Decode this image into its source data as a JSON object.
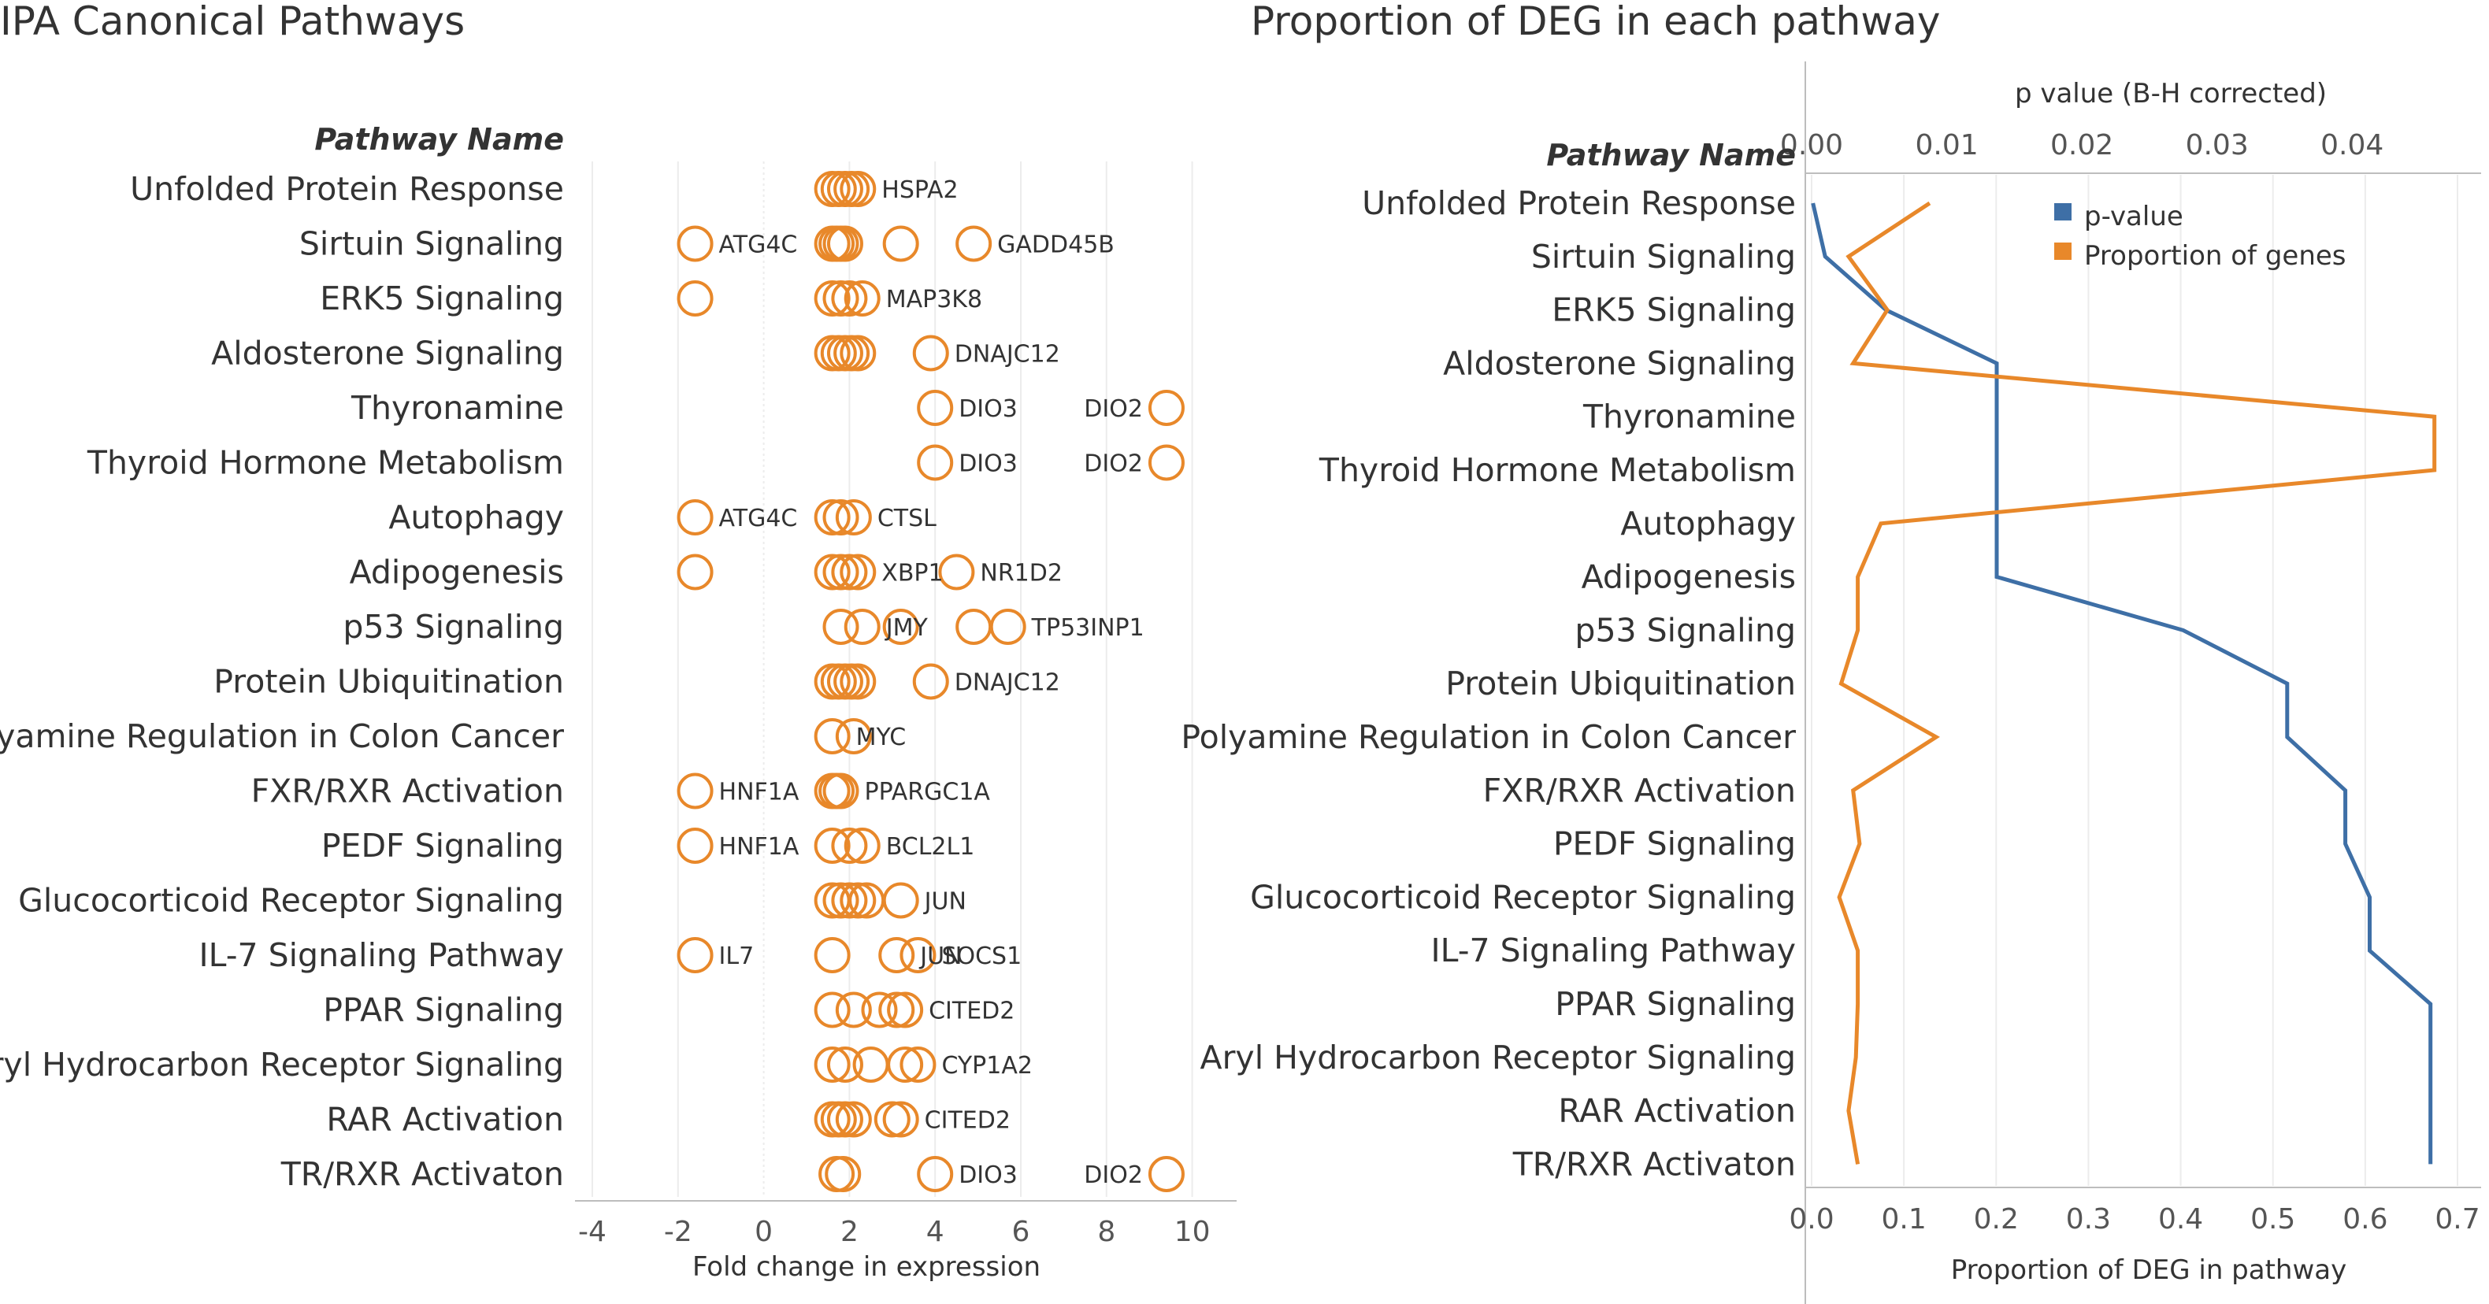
{
  "colors": {
    "orange": "#E8882A",
    "blue": "#3E6FA6"
  },
  "chart_data": [
    {
      "type": "scatter",
      "title": "IPA Canonical Pathways",
      "category_header": "Pathway Name",
      "xlabel": "Fold change in expression",
      "xlim": [
        -4,
        11
      ],
      "xticks": [
        -4,
        -2,
        0,
        2,
        4,
        6,
        8,
        10
      ],
      "categories": [
        "Unfolded Protein Response",
        "Sirtuin Signaling",
        "ERK5 Signaling",
        "Aldosterone Signaling",
        "Thyronamine",
        "Thyroid Hormone Metabolism",
        "Autophagy",
        "Adipogenesis",
        "p53 Signaling",
        "Protein Ubiquitination",
        "Polyamine Regulation in Colon Cancer",
        "FXR/RXR Activation",
        "PEDF Signaling",
        "Glucocorticoid Receptor Signaling",
        "IL-7 Signaling Pathway",
        "PPAR Signaling",
        "Aryl Hydrocarbon Receptor Signaling",
        "RAR Activation",
        "TR/RXR Activaton"
      ],
      "points": [
        [
          1.6,
          1.75,
          1.9,
          2.05,
          2.2
        ],
        [
          -1.6,
          1.6,
          1.7,
          1.8,
          1.9,
          3.2,
          4.9
        ],
        [
          -1.6,
          1.6,
          1.8,
          2.0,
          2.3
        ],
        [
          1.6,
          1.75,
          1.9,
          2.05,
          2.2,
          3.9
        ],
        [
          4.0,
          9.4
        ],
        [
          4.0,
          9.4
        ],
        [
          -1.6,
          1.6,
          1.8,
          2.1
        ],
        [
          -1.6,
          1.6,
          1.8,
          2.0,
          2.2,
          4.5
        ],
        [
          1.8,
          2.3,
          3.2,
          4.9,
          5.7
        ],
        [
          1.6,
          1.75,
          1.9,
          2.05,
          2.2,
          3.9
        ],
        [
          1.6,
          2.1
        ],
        [
          -1.6,
          1.6,
          1.7,
          1.8
        ],
        [
          -1.6,
          1.6,
          2.0,
          2.3
        ],
        [
          1.6,
          1.8,
          2.0,
          2.2,
          2.4,
          3.2
        ],
        [
          -1.6,
          1.6,
          3.1,
          3.6
        ],
        [
          1.6,
          2.1,
          2.7,
          3.1,
          3.3
        ],
        [
          1.6,
          1.9,
          2.5,
          3.3,
          3.6
        ],
        [
          1.6,
          1.75,
          1.9,
          2.1,
          3.0,
          3.2
        ],
        [
          1.7,
          1.85,
          4.0,
          9.4
        ]
      ],
      "gene_labels": [
        [
          {
            "text": "HSPA2",
            "x": 2.2
          }
        ],
        [
          {
            "text": "ATG4C",
            "x": -1.6
          },
          {
            "text": "GADD45B",
            "x": 4.9
          }
        ],
        [
          {
            "text": "MAP3K8",
            "x": 2.3
          }
        ],
        [
          {
            "text": "DNAJC12",
            "x": 3.9
          }
        ],
        [
          {
            "text": "DIO3",
            "x": 4.0
          },
          {
            "text": "DIO2",
            "x": 9.4,
            "side": "left"
          }
        ],
        [
          {
            "text": "DIO3",
            "x": 4.0
          },
          {
            "text": "DIO2",
            "x": 9.4,
            "side": "left"
          }
        ],
        [
          {
            "text": "ATG4C",
            "x": -1.6
          },
          {
            "text": "CTSL",
            "x": 2.1
          }
        ],
        [
          {
            "text": "XBP1",
            "x": 2.2
          },
          {
            "text": "NR1D2",
            "x": 4.5
          }
        ],
        [
          {
            "text": "JMY",
            "x": 2.3
          },
          {
            "text": "TP53INP1",
            "x": 5.7
          }
        ],
        [
          {
            "text": "DNAJC12",
            "x": 3.9
          }
        ],
        [
          {
            "text": "MYC",
            "x": 1.6
          }
        ],
        [
          {
            "text": "HNF1A",
            "x": -1.6
          },
          {
            "text": "PPARGC1A",
            "x": 1.8
          }
        ],
        [
          {
            "text": "HNF1A",
            "x": -1.6
          },
          {
            "text": "BCL2L1",
            "x": 2.3
          }
        ],
        [
          {
            "text": "JUN",
            "x": 3.2
          }
        ],
        [
          {
            "text": "IL7",
            "x": -1.6
          },
          {
            "text": "JUN",
            "x": 3.1
          },
          {
            "text": "SOCS1",
            "x": 3.6
          }
        ],
        [
          {
            "text": "CITED2",
            "x": 3.3
          }
        ],
        [
          {
            "text": "CYP1A2",
            "x": 3.6
          }
        ],
        [
          {
            "text": "CITED2",
            "x": 3.2
          }
        ],
        [
          {
            "text": "DIO3",
            "x": 4.0
          },
          {
            "text": "DIO2",
            "x": 9.4,
            "side": "left"
          }
        ]
      ]
    },
    {
      "type": "line",
      "title": "Proportion of DEG in each pathway",
      "category_header": "Pathway Name",
      "categories": [
        "Unfolded Protein Response",
        "Sirtuin Signaling",
        "ERK5 Signaling",
        "Aldosterone Signaling",
        "Thyronamine",
        "Thyroid Hormone Metabolism",
        "Autophagy",
        "Adipogenesis",
        "p53 Signaling",
        "Protein Ubiquitination",
        "Polyamine Regulation in Colon Cancer",
        "FXR/RXR Activation",
        "PEDF Signaling",
        "Glucocorticoid Receptor Signaling",
        "IL-7 Signaling Pathway",
        "PPAR Signaling",
        "Aryl Hydrocarbon Receptor Signaling",
        "RAR Activation",
        "TR/RXR Activaton"
      ],
      "top_axis": {
        "label": "p value (B-H corrected)",
        "lim": [
          0,
          0.0478
        ],
        "ticks": [
          "0.00",
          "0.01",
          "0.02",
          "0.03",
          "0.04"
        ]
      },
      "bottom_axis": {
        "label": "Proportion of DEG in pathway",
        "lim": [
          0,
          0.7
        ],
        "ticks": [
          "0.0",
          "0.1",
          "0.2",
          "0.3",
          "0.4",
          "0.5",
          "0.6",
          "0.7"
        ]
      },
      "legend_position": "top-right",
      "series": [
        {
          "name": "p-value",
          "axis": "top",
          "color": "#3E6FA6",
          "values": [
            0.0001,
            0.001,
            0.0055,
            0.0137,
            0.0137,
            0.0137,
            0.0137,
            0.0137,
            0.0275,
            0.0352,
            0.0352,
            0.0395,
            0.0395,
            0.0413,
            0.0413,
            0.0458,
            0.0458,
            0.0458,
            0.0458
          ]
        },
        {
          "name": "Proportion of genes",
          "axis": "bottom",
          "color": "#E8882A",
          "values": [
            0.128,
            0.04,
            0.082,
            0.045,
            0.675,
            0.675,
            0.075,
            0.05,
            0.05,
            0.032,
            0.135,
            0.045,
            0.052,
            0.03,
            0.05,
            0.05,
            0.048,
            0.04,
            0.05
          ]
        }
      ]
    }
  ]
}
